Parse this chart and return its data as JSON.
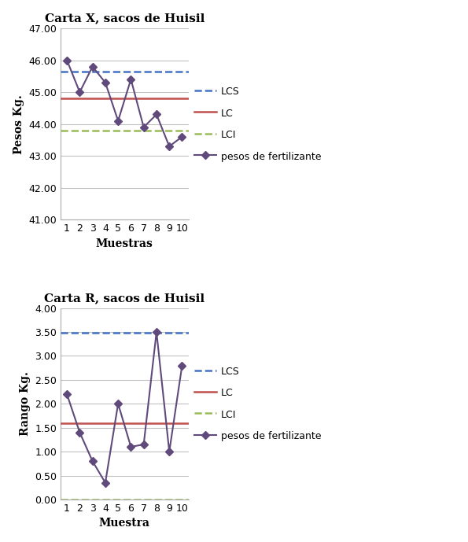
{
  "chart_x": {
    "title": "Carta X, sacos de Huisil",
    "xlabel": "Muestras",
    "ylabel": "Pesos Kg.",
    "x": [
      1,
      2,
      3,
      4,
      5,
      6,
      7,
      8,
      9,
      10
    ],
    "data": [
      46.0,
      45.0,
      45.8,
      45.3,
      44.1,
      45.4,
      43.9,
      44.3,
      43.3,
      43.6
    ],
    "LCS": 45.65,
    "LC": 44.8,
    "LCI": 43.8,
    "ylim": [
      41.0,
      47.0
    ],
    "yticks": [
      41.0,
      42.0,
      43.0,
      44.0,
      45.0,
      46.0,
      47.0
    ]
  },
  "chart_r": {
    "title": "Carta R, sacos de Huisil",
    "xlabel": "Muestra",
    "ylabel": "Rango Kg.",
    "x": [
      1,
      2,
      3,
      4,
      5,
      6,
      7,
      8,
      9,
      10
    ],
    "data": [
      2.2,
      1.4,
      0.8,
      0.35,
      2.0,
      1.1,
      1.15,
      3.5,
      1.0,
      2.8
    ],
    "LCS": 3.48,
    "LC": 1.6,
    "LCI": 0.0,
    "ylim": [
      0.0,
      4.0
    ],
    "yticks": [
      0.0,
      0.5,
      1.0,
      1.5,
      2.0,
      2.5,
      3.0,
      3.5,
      4.0
    ]
  },
  "lcs_color": "#4472C4",
  "lc_color": "#C0504D",
  "lci_color": "#9BBB59",
  "data_color": "#604A7B",
  "bg_color": "#FFFFFF",
  "plot_bg": "#FFFFFF",
  "grid_color": "#C0C0C0",
  "title_fontsize": 11,
  "label_fontsize": 10,
  "tick_fontsize": 9,
  "legend_fontsize": 9
}
